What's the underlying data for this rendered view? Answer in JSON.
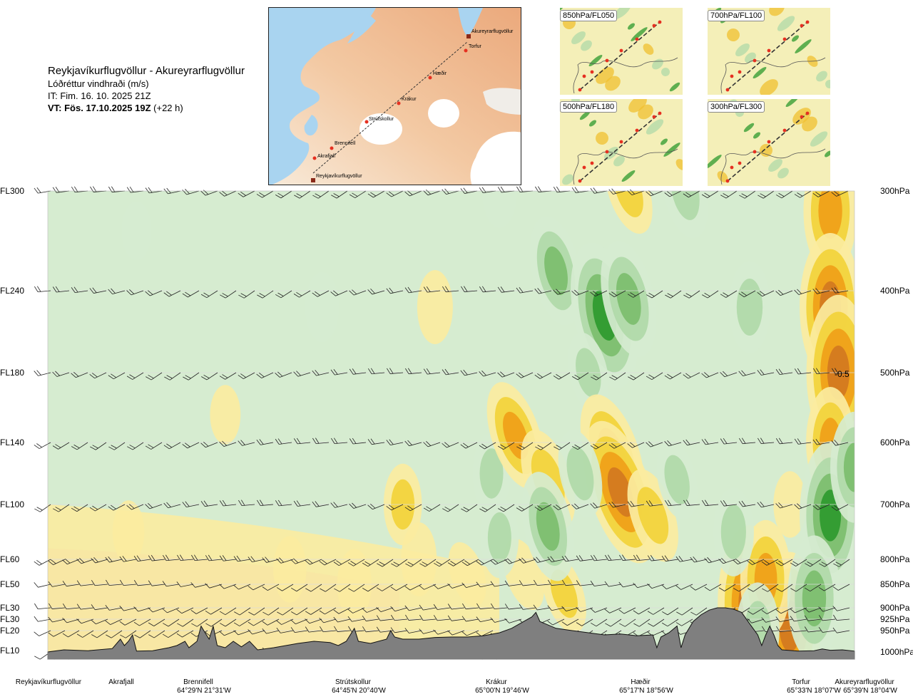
{
  "header": {
    "route": "Reykjavíkurflugvöllur - Akureyrarflugvöllur",
    "variable": "Lóðréttur vindhraði (m/s)",
    "init_time": "IT: Fim. 16. 10. 2025 21Z",
    "valid_prefix": "VT: Fös. 17.10.2025 19Z",
    "valid_suffix": "(+22 h)"
  },
  "map": {
    "stations": [
      "Reykjavíkurflugvöllur",
      "Akrafjall",
      "Brennifell",
      "Strútskollur",
      "Krákur",
      "Hæðir",
      "Torfur",
      "Akureyrarflugvöllur"
    ],
    "colors": {
      "sea": "#a9d4f0",
      "land_low": "#f6e4d0",
      "land_high": "#efb48a",
      "glacier": "#ffffff",
      "route": "#333333",
      "marker": "#e53020"
    }
  },
  "mini_maps": [
    "850hPa/FL050",
    "700hPa/FL100",
    "500hPa/FL180",
    "300hPa/FL300"
  ],
  "chart_data": {
    "type": "heatmap",
    "title": "Lóðréttur vindhraði (m/s)",
    "y_levels_fl": [
      "FL300",
      "FL240",
      "FL180",
      "FL140",
      "FL100",
      "FL60",
      "FL50",
      "FL30",
      "FL30",
      "FL20",
      "FL10"
    ],
    "y_levels_hpa": [
      "300hPa",
      "400hPa",
      "500hPa",
      "600hPa",
      "700hPa",
      "800hPa",
      "850hPa",
      "900hPa",
      "925hPa",
      "950hPa",
      "1000hPa"
    ],
    "pressure_values": [
      300,
      400,
      500,
      600,
      700,
      800,
      850,
      900,
      925,
      950,
      1000
    ],
    "x_stations": [
      {
        "name": "Reykjavíkurflugvöllur",
        "coord": "",
        "frac": 0.0
      },
      {
        "name": "Akrafjall",
        "coord": "",
        "frac": 0.09
      },
      {
        "name": "Brennifell",
        "coord": "64°29'N 21°31'W",
        "frac": 0.185
      },
      {
        "name": "Strútskollur",
        "coord": "64°45'N 20°40'W",
        "frac": 0.38
      },
      {
        "name": "Krákur",
        "coord": "65°00'N 19°46'W",
        "frac": 0.57
      },
      {
        "name": "Hæðir",
        "coord": "65°17'N 18°56'W",
        "frac": 0.75
      },
      {
        "name": "Torfur",
        "coord": "65°33'N 18°07'W",
        "frac": 0.945
      },
      {
        "name": "Akureyrarflugvöllur",
        "coord": "65°39'N 18°04'W",
        "frac": 1.0
      }
    ],
    "annotation": "-0.5",
    "colors": {
      "strong_down": "#9e4a14",
      "down_3": "#d3781f",
      "down_2": "#f0a018",
      "down_1": "#f2d23a",
      "down_weak": "#fbeca0",
      "neutral": "#fffff0",
      "up_weak": "#d6ecd0",
      "up_1": "#b0d9a8",
      "up_2": "#7cbe6c",
      "up_3": "#2e9a2e",
      "terrain": "#7f7f7f"
    },
    "blobs": [
      {
        "x": 0.63,
        "p": 380,
        "v": 2.0
      },
      {
        "x": 0.69,
        "p": 430,
        "v": 3.0
      },
      {
        "x": 0.72,
        "p": 410,
        "v": 2.2
      },
      {
        "x": 0.79,
        "p": 300,
        "v": 1.6
      },
      {
        "x": 0.87,
        "p": 420,
        "v": 1.5
      },
      {
        "x": 0.55,
        "p": 650,
        "v": 1.2
      },
      {
        "x": 0.67,
        "p": 500,
        "v": 1.2
      },
      {
        "x": 0.56,
        "p": 300,
        "v": 1.0
      },
      {
        "x": 0.11,
        "p": 340,
        "v": 0.6
      },
      {
        "x": 0.34,
        "p": 420,
        "v": 0.9
      },
      {
        "x": 0.97,
        "p": 320,
        "v": -2.4
      },
      {
        "x": 0.97,
        "p": 420,
        "v": -3.0
      },
      {
        "x": 0.98,
        "p": 500,
        "v": -3.2
      },
      {
        "x": 0.97,
        "p": 600,
        "v": -2.0
      },
      {
        "x": 0.58,
        "p": 590,
        "v": -2.0
      },
      {
        "x": 0.62,
        "p": 660,
        "v": -1.8
      },
      {
        "x": 0.7,
        "p": 620,
        "v": -2.4
      },
      {
        "x": 0.71,
        "p": 680,
        "v": -3.0
      },
      {
        "x": 0.75,
        "p": 720,
        "v": -1.6
      },
      {
        "x": 0.87,
        "p": 890,
        "v": -3.2
      },
      {
        "x": 0.92,
        "p": 940,
        "v": -3.0
      },
      {
        "x": 0.89,
        "p": 840,
        "v": -2.2
      },
      {
        "x": 0.44,
        "p": 700,
        "v": -1.2
      },
      {
        "x": 0.48,
        "p": 420,
        "v": -1.0
      },
      {
        "x": 0.72,
        "p": 300,
        "v": -1.4
      },
      {
        "x": 0.92,
        "p": 700,
        "v": -0.8
      },
      {
        "x": 0.97,
        "p": 720,
        "v": 3.0
      },
      {
        "x": 1.0,
        "p": 640,
        "v": 2.0
      },
      {
        "x": 0.95,
        "p": 880,
        "v": 2.4
      },
      {
        "x": 0.88,
        "p": 950,
        "v": 1.6
      },
      {
        "x": 0.22,
        "p": 560,
        "v": -0.6
      },
      {
        "x": 0.1,
        "p": 750,
        "v": -0.7
      },
      {
        "x": 0.3,
        "p": 820,
        "v": -0.8
      },
      {
        "x": 0.38,
        "p": 850,
        "v": -0.9
      },
      {
        "x": 0.46,
        "p": 800,
        "v": -1.0
      },
      {
        "x": 0.52,
        "p": 830,
        "v": -0.8
      },
      {
        "x": 0.59,
        "p": 830,
        "v": -1.0
      },
      {
        "x": 0.64,
        "p": 870,
        "v": -1.2
      },
      {
        "x": 0.56,
        "p": 760,
        "v": 1.2
      },
      {
        "x": 0.62,
        "p": 740,
        "v": 2.0
      },
      {
        "x": 0.66,
        "p": 650,
        "v": 1.4
      },
      {
        "x": 0.78,
        "p": 660,
        "v": 1.2
      },
      {
        "x": 0.85,
        "p": 750,
        "v": 1.4
      }
    ],
    "terrain_profile": [
      [
        0.0,
        1000
      ],
      [
        0.02,
        995
      ],
      [
        0.05,
        997
      ],
      [
        0.08,
        992
      ],
      [
        0.09,
        970
      ],
      [
        0.095,
        985
      ],
      [
        0.1,
        975
      ],
      [
        0.105,
        960
      ],
      [
        0.11,
        998
      ],
      [
        0.13,
        997
      ],
      [
        0.15,
        990
      ],
      [
        0.16,
        985
      ],
      [
        0.17,
        975
      ],
      [
        0.175,
        990
      ],
      [
        0.185,
        975
      ],
      [
        0.19,
        940
      ],
      [
        0.195,
        955
      ],
      [
        0.2,
        970
      ],
      [
        0.205,
        940
      ],
      [
        0.21,
        985
      ],
      [
        0.22,
        990
      ],
      [
        0.23,
        975
      ],
      [
        0.24,
        988
      ],
      [
        0.25,
        975
      ],
      [
        0.26,
        995
      ],
      [
        0.28,
        990
      ],
      [
        0.31,
        980
      ],
      [
        0.33,
        975
      ],
      [
        0.35,
        978
      ],
      [
        0.36,
        985
      ],
      [
        0.37,
        975
      ],
      [
        0.38,
        945
      ],
      [
        0.385,
        975
      ],
      [
        0.4,
        980
      ],
      [
        0.42,
        970
      ],
      [
        0.425,
        950
      ],
      [
        0.43,
        965
      ],
      [
        0.44,
        970
      ],
      [
        0.46,
        970
      ],
      [
        0.48,
        966
      ],
      [
        0.5,
        965
      ],
      [
        0.52,
        965
      ],
      [
        0.54,
        962
      ],
      [
        0.56,
        955
      ],
      [
        0.575,
        945
      ],
      [
        0.59,
        930
      ],
      [
        0.6,
        920
      ],
      [
        0.605,
        910
      ],
      [
        0.61,
        930
      ],
      [
        0.63,
        945
      ],
      [
        0.65,
        950
      ],
      [
        0.67,
        955
      ],
      [
        0.69,
        960
      ],
      [
        0.71,
        958
      ],
      [
        0.73,
        962
      ],
      [
        0.75,
        960
      ],
      [
        0.755,
        990
      ],
      [
        0.76,
        965
      ],
      [
        0.77,
        955
      ],
      [
        0.78,
        940
      ],
      [
        0.785,
        990
      ],
      [
        0.79,
        960
      ],
      [
        0.8,
        930
      ],
      [
        0.81,
        915
      ],
      [
        0.82,
        905
      ],
      [
        0.83,
        900
      ],
      [
        0.84,
        900
      ],
      [
        0.85,
        903
      ],
      [
        0.86,
        910
      ],
      [
        0.87,
        935
      ],
      [
        0.88,
        960
      ],
      [
        0.885,
        985
      ],
      [
        0.89,
        960
      ],
      [
        0.895,
        940
      ],
      [
        0.9,
        960
      ],
      [
        0.905,
        985
      ],
      [
        0.91,
        995
      ],
      [
        0.93,
        998
      ],
      [
        0.95,
        997
      ],
      [
        0.96,
        993
      ],
      [
        0.97,
        996
      ],
      [
        0.985,
        995
      ],
      [
        1.0,
        998
      ]
    ]
  }
}
